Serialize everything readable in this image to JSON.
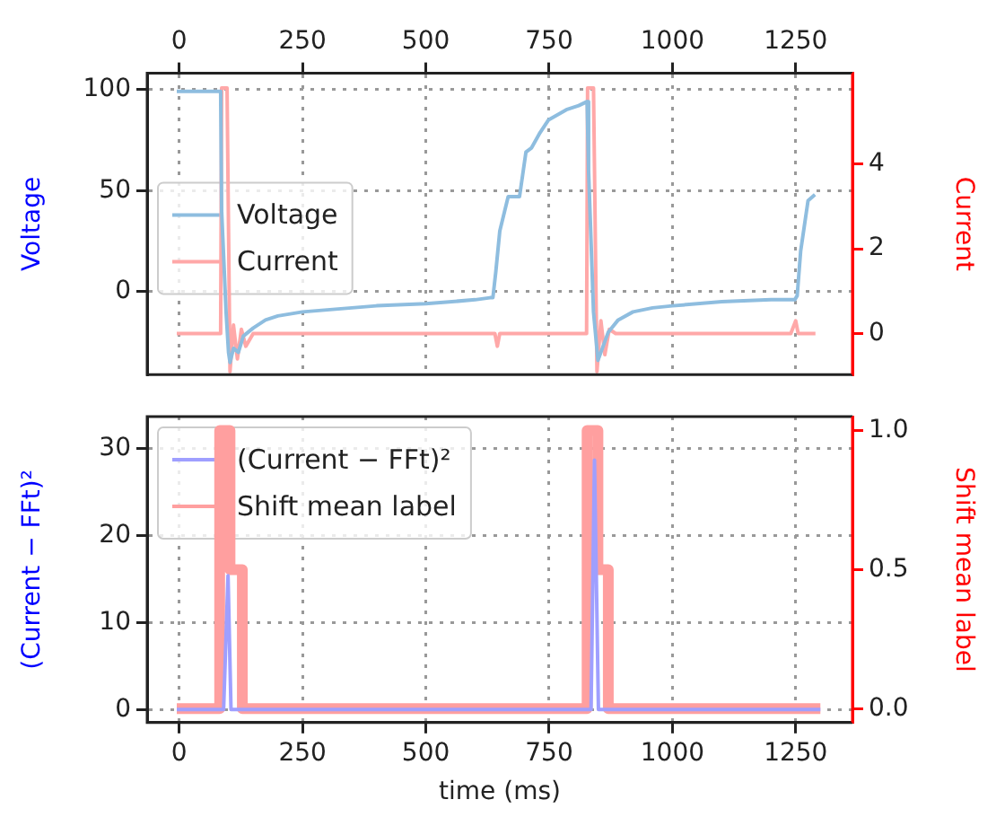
{
  "chart_data": [
    {
      "type": "line",
      "ylabel": "Voltage",
      "y2label": "Current",
      "xlim": [
        -65,
        1365
      ],
      "xticks": [
        0,
        250,
        500,
        750,
        1000,
        1250
      ],
      "ylim": [
        -41,
        108
      ],
      "yticks": [
        0,
        50,
        100
      ],
      "y2lim": [
        -0.97,
        6.15
      ],
      "y2ticks": [
        0,
        2,
        4
      ],
      "grid": true,
      "legend": "center left",
      "series": [
        {
          "name": "Voltage",
          "color": "#8ebddf",
          "x": [
            -5,
            84,
            86,
            95,
            100,
            103,
            110,
            120,
            130,
            150,
            175,
            200,
            250,
            300,
            400,
            500,
            600,
            630,
            636,
            642,
            650,
            667,
            690,
            703,
            714,
            730,
            749,
            785,
            810,
            827,
            830,
            840,
            849,
            855,
            870,
            890,
            920,
            960,
            1000,
            1100,
            1200,
            1248,
            1253,
            1260,
            1275,
            1289
          ],
          "values": [
            99,
            99,
            40,
            -10,
            -30,
            -35,
            -28,
            -30,
            -22,
            -18,
            -14,
            -12,
            -10,
            -9,
            -7,
            -6,
            -4,
            -3,
            -3,
            10,
            30,
            47,
            47,
            69,
            71,
            78,
            85,
            90,
            92,
            94,
            60,
            -10,
            -34,
            -30,
            -20,
            -14,
            -10,
            -8,
            -7,
            -5,
            -4,
            -4,
            -2,
            20,
            45,
            48
          ]
        },
        {
          "name": "Current",
          "color": "#ffa8a8",
          "axis": "y2",
          "x": [
            -5,
            84,
            86,
            97,
            103,
            110,
            118,
            126,
            135,
            150,
            400,
            640,
            645,
            650,
            826,
            828,
            840,
            847,
            855,
            863,
            872,
            885,
            1240,
            1250,
            1255,
            1290
          ],
          "values": [
            0,
            0,
            5.8,
            5.8,
            -0.9,
            0.2,
            -0.6,
            0.1,
            -0.3,
            0,
            0,
            0,
            -0.3,
            0,
            0,
            5.8,
            5.8,
            -0.9,
            0.3,
            -0.5,
            0.1,
            0,
            0,
            0.3,
            0,
            0
          ]
        }
      ]
    },
    {
      "type": "line",
      "xlabel": "time (ms)",
      "ylabel": "(Current − FFt)²",
      "y2label": "Shift mean label",
      "xlim": [
        -65,
        1365
      ],
      "xticks": [
        0,
        250,
        500,
        750,
        1000,
        1250
      ],
      "ylim": [
        -1.5,
        33.7
      ],
      "yticks": [
        0,
        10,
        20,
        30
      ],
      "y2lim": [
        -0.05,
        1.05
      ],
      "y2ticks": [
        {
          "value": 0,
          "label": "0.0"
        },
        0.5,
        {
          "value": 1,
          "label": "1.0"
        }
      ],
      "grid": true,
      "legend": "top left",
      "series": [
        {
          "name": "(Current − FFt)²",
          "color": "#9f9fff",
          "x": [
            -5,
            90,
            99,
            105,
            835,
            842,
            850,
            1300
          ],
          "values": [
            0,
            0,
            15.4,
            0,
            0,
            28.7,
            0,
            0
          ]
        },
        {
          "name": "Shift mean label",
          "color": "#ff9f9f",
          "axis": "y2",
          "x": [
            -5,
            82,
            82,
            103,
            103,
            128,
            128,
            827,
            827,
            849,
            849,
            870,
            870,
            1300
          ],
          "values": [
            0,
            0,
            1,
            1,
            0.5,
            0.5,
            0,
            0,
            1,
            1,
            0.5,
            0.5,
            0,
            0
          ]
        }
      ]
    }
  ]
}
